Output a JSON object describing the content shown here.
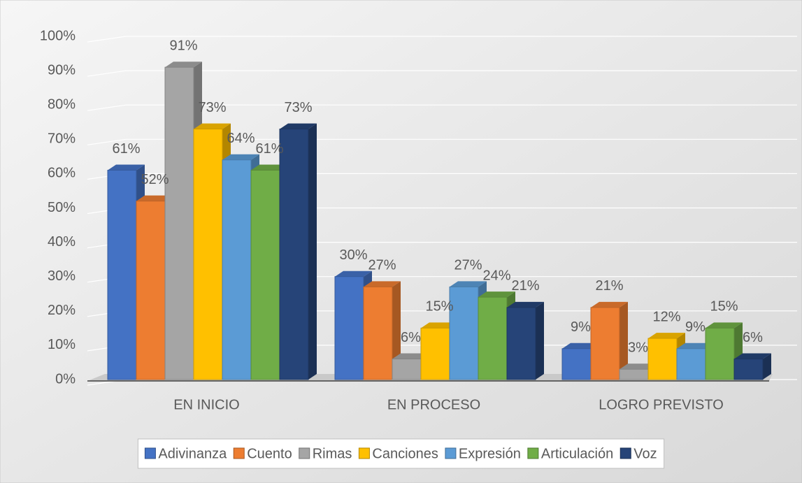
{
  "chart_data": {
    "type": "bar3d",
    "categories": [
      "EN INICIO",
      "EN PROCESO",
      "LOGRO PREVISTO"
    ],
    "series": [
      {
        "name": "Adivinanza",
        "color": "#4472c4",
        "values": [
          61,
          30,
          9
        ],
        "value_labels": [
          "61%",
          "30%",
          "9%"
        ]
      },
      {
        "name": "Cuento",
        "color": "#ed7d31",
        "values": [
          52,
          27,
          21
        ],
        "value_labels": [
          "52%",
          "27%",
          "21%"
        ]
      },
      {
        "name": "Rimas",
        "color": "#a5a5a5",
        "values": [
          91,
          6,
          3
        ],
        "value_labels": [
          "91%",
          "6%",
          "3%"
        ]
      },
      {
        "name": "Canciones",
        "color": "#ffc000",
        "values": [
          73,
          15,
          12
        ],
        "value_labels": [
          "73%",
          "15%",
          "12%"
        ]
      },
      {
        "name": "Expresión",
        "color": "#5b9bd5",
        "values": [
          64,
          27,
          9
        ],
        "value_labels": [
          "64%",
          "27%",
          "9%"
        ]
      },
      {
        "name": "Articulación",
        "color": "#70ad47",
        "values": [
          61,
          24,
          15
        ],
        "value_labels": [
          "61%",
          "24%",
          "15%"
        ]
      },
      {
        "name": "Voz",
        "color": "#264478",
        "values": [
          73,
          21,
          6
        ],
        "value_labels": [
          "73%",
          "21%",
          "6%"
        ]
      }
    ],
    "ylim": [
      0,
      100
    ],
    "yticks": [
      {
        "value": 0,
        "label": "0%"
      },
      {
        "value": 10,
        "label": "10%"
      },
      {
        "value": 20,
        "label": "20%"
      },
      {
        "value": 30,
        "label": "30%"
      },
      {
        "value": 40,
        "label": "40%"
      },
      {
        "value": 50,
        "label": "50%"
      },
      {
        "value": 60,
        "label": "60%"
      },
      {
        "value": 70,
        "label": "70%"
      },
      {
        "value": 80,
        "label": "80%"
      },
      {
        "value": 90,
        "label": "90%"
      },
      {
        "value": 100,
        "label": "100%"
      }
    ],
    "grid": true,
    "legend": "bottom"
  }
}
